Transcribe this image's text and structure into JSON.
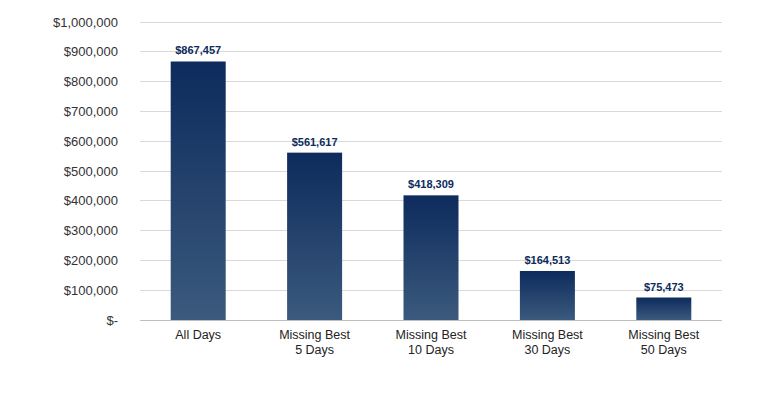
{
  "chart_data": {
    "type": "bar",
    "categories": [
      "All Days",
      "Missing Best 5 Days",
      "Missing Best 10 Days",
      "Missing Best 30 Days",
      "Missing Best 50 Days"
    ],
    "values": [
      867457,
      561617,
      418309,
      164513,
      75473
    ],
    "value_labels": [
      "$867,457",
      "$561,617",
      "$418,309",
      "$164,513",
      "$75,473"
    ],
    "color": "#0d2b5c",
    "ylim": [
      0,
      1000000
    ],
    "yticks": [
      {
        "value": 0,
        "label": "$-"
      },
      {
        "value": 100000,
        "label": "$100,000"
      },
      {
        "value": 200000,
        "label": "$200,000"
      },
      {
        "value": 300000,
        "label": "$300,000"
      },
      {
        "value": 400000,
        "label": "$400,000"
      },
      {
        "value": 500000,
        "label": "$500,000"
      },
      {
        "value": 600000,
        "label": "$600,000"
      },
      {
        "value": 700000,
        "label": "$700,000"
      },
      {
        "value": 800000,
        "label": "$800,000"
      },
      {
        "value": 900000,
        "label": "$900,000"
      },
      {
        "value": 1000000,
        "label": "$1,000,000"
      }
    ],
    "grid": true,
    "data_labels": true
  }
}
